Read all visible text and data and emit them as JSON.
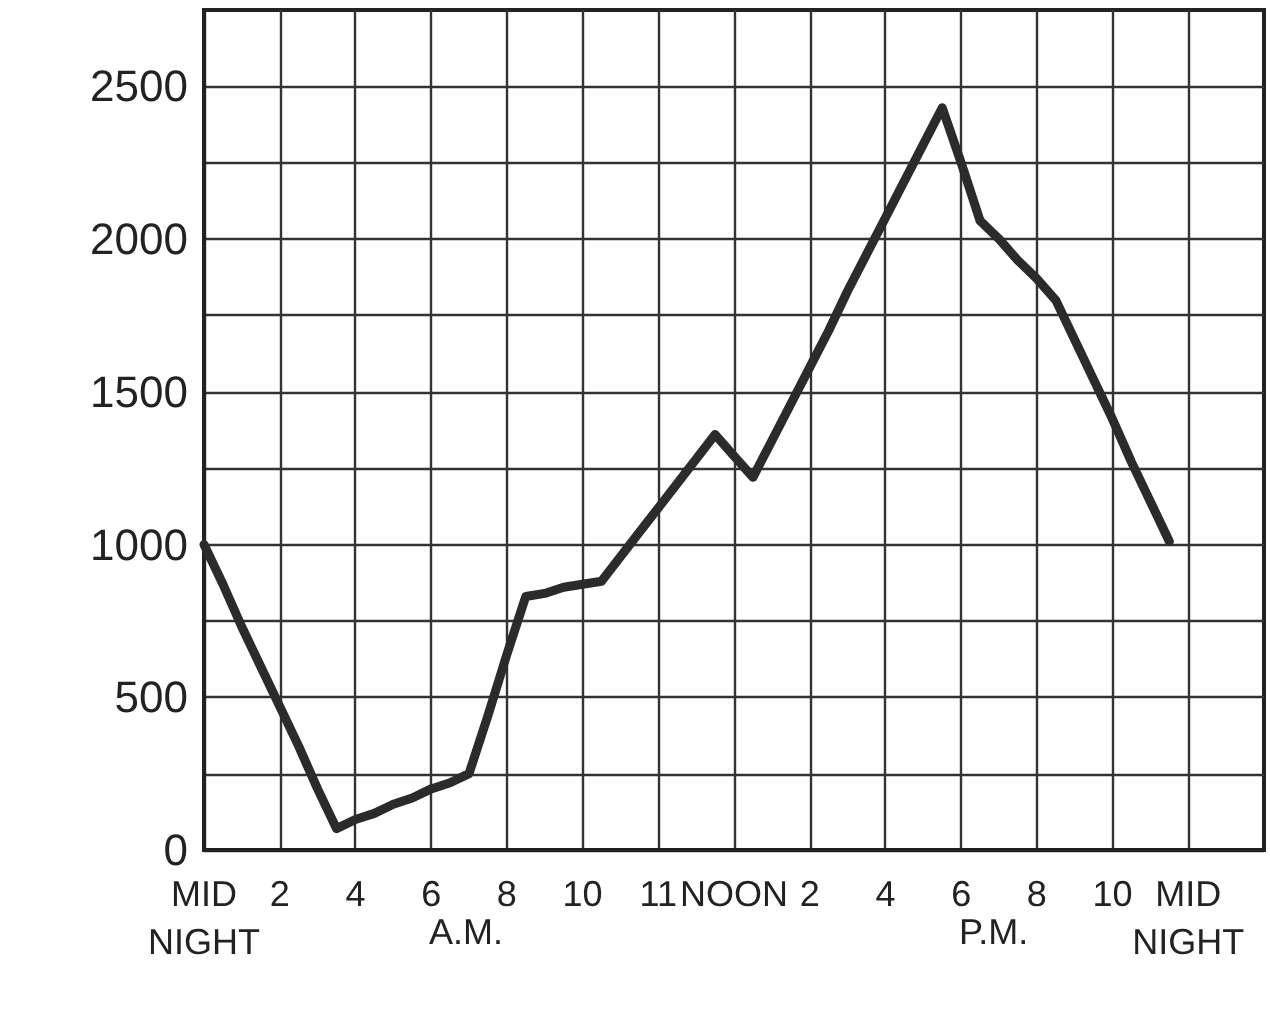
{
  "chart_data": {
    "type": "line",
    "categories": [
      "MID NIGHT",
      null,
      null,
      null,
      "2",
      null,
      null,
      null,
      "4",
      null,
      null,
      null,
      "6",
      null,
      null,
      null,
      "8",
      null,
      null,
      null,
      "10",
      null,
      null,
      null,
      "11",
      null,
      null,
      null,
      "NOON",
      null,
      null,
      null,
      "2",
      null,
      null,
      null,
      "4",
      null,
      null,
      null,
      "6",
      null,
      null,
      null,
      "8",
      null,
      null,
      null,
      "10",
      null,
      null,
      null,
      "MID NIGHT",
      null,
      null,
      null,
      null
    ],
    "values": [
      1000,
      870,
      730,
      600,
      470,
      340,
      200,
      70,
      100,
      120,
      150,
      170,
      200,
      220,
      250,
      440,
      640,
      830,
      840,
      860,
      870,
      880,
      960,
      1040,
      1120,
      1200,
      1280,
      1360,
      1290,
      1220,
      1340,
      1460,
      1580,
      1700,
      1830,
      1950,
      2070,
      2190,
      2310,
      2430,
      2250,
      2060,
      2000,
      1930,
      1870,
      1800,
      1670,
      1540,
      1410,
      1270,
      1140,
      1010,
      null,
      null,
      null,
      null,
      null
    ],
    "color": "#2b2b2b",
    "ylim": [
      0,
      2750
    ],
    "yticks": [
      0,
      {
        "value": 250,
        "label": null
      },
      500,
      {
        "value": 750,
        "label": null
      },
      1000,
      {
        "value": 1250,
        "label": null
      },
      1500,
      {
        "value": 1750,
        "label": null
      },
      2000,
      {
        "value": 2250,
        "label": null
      },
      2500
    ],
    "annotations": [
      "A.M.",
      "P.M."
    ],
    "grid": true,
    "marker": "none",
    "line_style": "solid"
  }
}
